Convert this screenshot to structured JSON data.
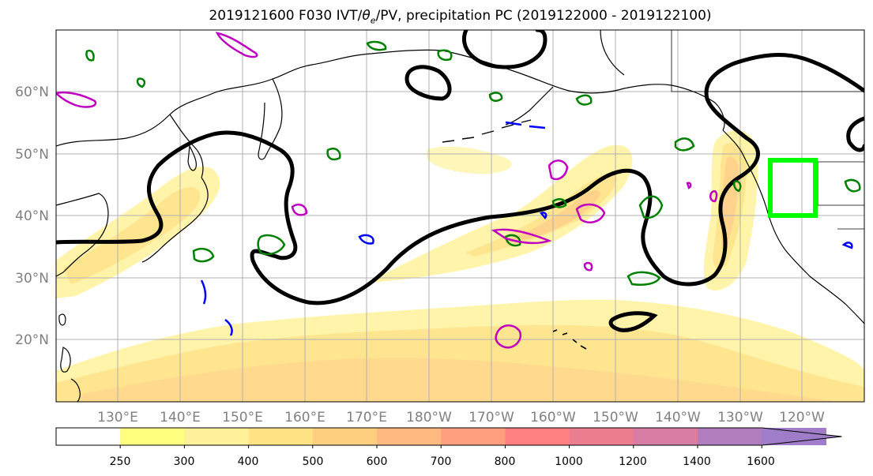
{
  "title": "2019121600 F030 IVT/θe/PV, precipitation PC (2019122000 - 2019122100)",
  "title_parts": {
    "prefix": "2019121600 F030 IVT/",
    "theta": "θ",
    "theta_sub": "e",
    "suffix": "/PV, precipitation PC (2019122000 - 2019122100)"
  },
  "lat_labels": [
    "60°N",
    "50°N",
    "40°N",
    "30°N",
    "20°N"
  ],
  "lon_labels": [
    "130°E",
    "140°E",
    "150°E",
    "160°E",
    "170°E",
    "180°W",
    "170°W",
    "160°W",
    "150°W",
    "140°W",
    "130°W",
    "120°W"
  ],
  "colorbar": {
    "ticks": [
      "250",
      "300",
      "400",
      "500",
      "600",
      "700",
      "800",
      "1000",
      "1200",
      "1400",
      "1600"
    ],
    "colors": [
      "#ffffff",
      "#ffff80",
      "#fff09a",
      "#ffe385",
      "#ffcf80",
      "#ffb880",
      "#ff9f80",
      "#ff8080",
      "#ea7d90",
      "#d87da3",
      "#b07dbf",
      "#9f7dc9"
    ]
  },
  "colors": {
    "land": "#000000",
    "theta_contour": "#000000",
    "pv_positive": "#008000",
    "pv_negative": "#0000ff",
    "pv_magenta": "#c000c0",
    "highlight_box": "#00ff00",
    "grid": "#b0b0b0"
  },
  "map_region": {
    "lon_min": 120,
    "lon_max": 250,
    "lat_min": 10,
    "lat_max": 70
  }
}
